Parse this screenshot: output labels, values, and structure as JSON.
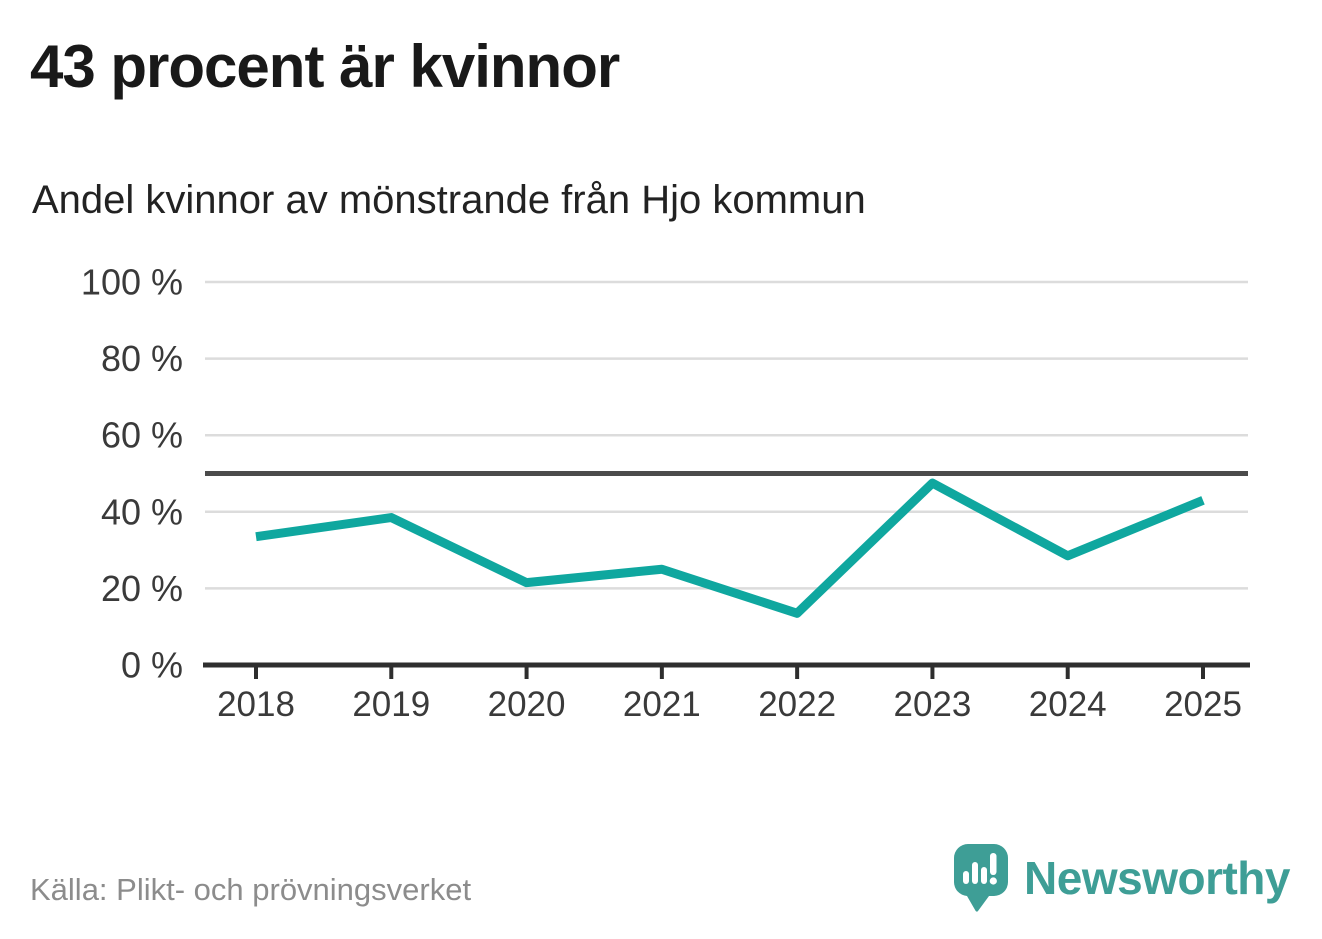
{
  "header": {
    "title": "43 procent är kvinnor",
    "subtitle": "Andel kvinnor av mönstrande från Hjo kommun"
  },
  "footer": {
    "source": "Källa: Plikt- och prövningsverket",
    "brand_name": "Newsworthy"
  },
  "colors": {
    "line": "#0fa79f",
    "reference_line": "#4b4b4b",
    "grid": "#dcdcdc",
    "axis": "#2e2e2e",
    "tick_label": "#3a3a3a",
    "title": "#191919",
    "source_text": "#8c8c8c",
    "brand_teal": "#3e9e96"
  },
  "chart_data": {
    "type": "line",
    "title": "43 procent är kvinnor",
    "subtitle": "Andel kvinnor av mönstrande från Hjo kommun",
    "categories": [
      "2018",
      "2019",
      "2020",
      "2021",
      "2022",
      "2023",
      "2024",
      "2025"
    ],
    "values": [
      33.5,
      38.5,
      21.5,
      25,
      13.5,
      47.5,
      28.5,
      43
    ],
    "xlabel": "",
    "ylabel": "",
    "ylim": [
      0,
      100
    ],
    "yticks": [
      0,
      20,
      40,
      60,
      80,
      100
    ],
    "ytick_suffix": " %",
    "reference_line": 50,
    "grid": "horizontal",
    "legend": "none",
    "series_name": "Andel kvinnor"
  }
}
